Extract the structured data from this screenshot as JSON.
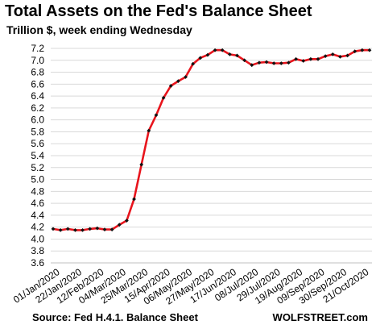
{
  "header": {
    "title": "Total Assets on the Fed's Balance Sheet",
    "subtitle": "Trillion $, week ending Wednesday"
  },
  "footer": {
    "source": "Source: Fed H.4.1. Balance Sheet",
    "brand": "WOLFSTREET.com"
  },
  "colors": {
    "line": "#e8141c",
    "marker": "#111111",
    "grid": "#d9d9d9",
    "axis_text": "#000000"
  },
  "chart_data": {
    "type": "line",
    "title": "Total Assets on the Fed's Balance Sheet",
    "subtitle": "Trillion $, week ending Wednesday",
    "ylim": [
      3.6,
      7.2
    ],
    "yticks": [
      "3.6",
      "3.8",
      "4.0",
      "4.2",
      "4.4",
      "4.6",
      "4.8",
      "5.0",
      "5.2",
      "5.4",
      "5.6",
      "5.8",
      "6.0",
      "6.2",
      "6.4",
      "6.6",
      "6.8",
      "7.0",
      "7.2"
    ],
    "xtick_labels": [
      "01/Jan/2020",
      "22/Jan/2020",
      "12/Feb/2020",
      "04/Mar/2020",
      "25/Mar/2020",
      "15/Apr/2020",
      "06/May/2020",
      "27/May/2020",
      "17/Jun/2020",
      "08/Jul/2020",
      "29/Jul/2020",
      "19/Aug/2020",
      "09/Sep/2020",
      "30/Sep/2020",
      "21/Oct/2020"
    ],
    "grid": "horizontal",
    "x": [
      "01/Jan/2020",
      "08/Jan/2020",
      "15/Jan/2020",
      "22/Jan/2020",
      "29/Jan/2020",
      "05/Feb/2020",
      "12/Feb/2020",
      "19/Feb/2020",
      "26/Feb/2020",
      "04/Mar/2020",
      "11/Mar/2020",
      "18/Mar/2020",
      "25/Mar/2020",
      "01/Apr/2020",
      "08/Apr/2020",
      "15/Apr/2020",
      "22/Apr/2020",
      "29/Apr/2020",
      "06/May/2020",
      "13/May/2020",
      "20/May/2020",
      "27/May/2020",
      "03/Jun/2020",
      "10/Jun/2020",
      "17/Jun/2020",
      "24/Jun/2020",
      "01/Jul/2020",
      "08/Jul/2020",
      "15/Jul/2020",
      "22/Jul/2020",
      "29/Jul/2020",
      "05/Aug/2020",
      "12/Aug/2020",
      "19/Aug/2020",
      "26/Aug/2020",
      "02/Sep/2020",
      "09/Sep/2020",
      "16/Sep/2020",
      "23/Sep/2020",
      "30/Sep/2020",
      "07/Oct/2020",
      "14/Oct/2020",
      "21/Oct/2020",
      "28/Oct/2020"
    ],
    "values": [
      4.17,
      4.15,
      4.17,
      4.15,
      4.15,
      4.17,
      4.18,
      4.16,
      4.16,
      4.24,
      4.31,
      4.67,
      5.25,
      5.82,
      6.08,
      6.37,
      6.57,
      6.65,
      6.72,
      6.94,
      7.04,
      7.09,
      7.17,
      7.17,
      7.1,
      7.08,
      7.0,
      6.92,
      6.96,
      6.97,
      6.95,
      6.95,
      6.96,
      7.02,
      6.99,
      7.02,
      7.02,
      7.07,
      7.1,
      7.06,
      7.08,
      7.15,
      7.17,
      7.17
    ]
  }
}
